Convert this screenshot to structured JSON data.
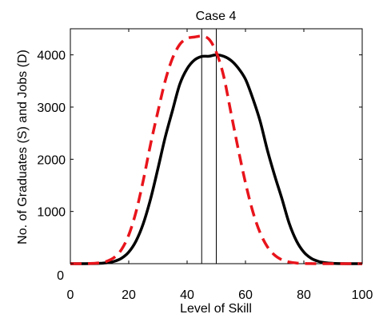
{
  "chart_data": {
    "type": "line",
    "title": "Case 4",
    "xlabel": "Level of Skill",
    "ylabel": "No. of Graduates (S) and Jobs (D)",
    "xlim": [
      0,
      100
    ],
    "ylim": [
      0,
      4500
    ],
    "xticks": [
      0,
      20,
      40,
      60,
      80,
      100
    ],
    "yticks": [
      0,
      1000,
      2000,
      3000,
      4000
    ],
    "xtick_labels": [
      "0",
      "20",
      "40",
      "60",
      "80",
      "100"
    ],
    "ytick_labels": [
      "0",
      "1000",
      "2000",
      "3000",
      "4000"
    ],
    "grid": false,
    "legend": "none",
    "x": [
      0,
      2.5,
      5,
      7.5,
      10,
      12.5,
      15,
      17.5,
      20,
      22.5,
      25,
      27.5,
      30,
      32.5,
      35,
      37.5,
      40,
      42.5,
      45,
      47.5,
      50,
      52.5,
      55,
      57.5,
      60,
      62.5,
      65,
      67.5,
      70,
      72.5,
      75,
      77.5,
      80,
      82.5,
      85,
      87.5,
      90,
      92.5,
      95,
      97.5,
      100
    ],
    "series": [
      {
        "style": "solid",
        "color": "#000000",
        "values": [
          0,
          0,
          0,
          2,
          6,
          17,
          44,
          103,
          222,
          434,
          770,
          1243,
          1820,
          2422,
          2935,
          3439,
          3734,
          3900,
          3969,
          3974,
          4000,
          3974,
          3896,
          3749,
          3533,
          3167,
          2735,
          2177,
          1690,
          1243,
          770,
          434,
          222,
          103,
          44,
          17,
          6,
          2,
          0,
          0,
          0
        ]
      },
      {
        "style": "dashed",
        "color": "#e8141b",
        "values": [
          0,
          0,
          1,
          5,
          16,
          46,
          118,
          269,
          548,
          993,
          1600,
          2293,
          2915,
          3502,
          3935,
          4200,
          4314,
          4341,
          4357,
          4300,
          4050,
          3600,
          2900,
          2200,
          1550,
          1000,
          595,
          325,
          163,
          74,
          31,
          12,
          4,
          1,
          0,
          0,
          0,
          0,
          0,
          0,
          0
        ]
      }
    ],
    "vertical_lines": [
      45,
      50
    ]
  }
}
